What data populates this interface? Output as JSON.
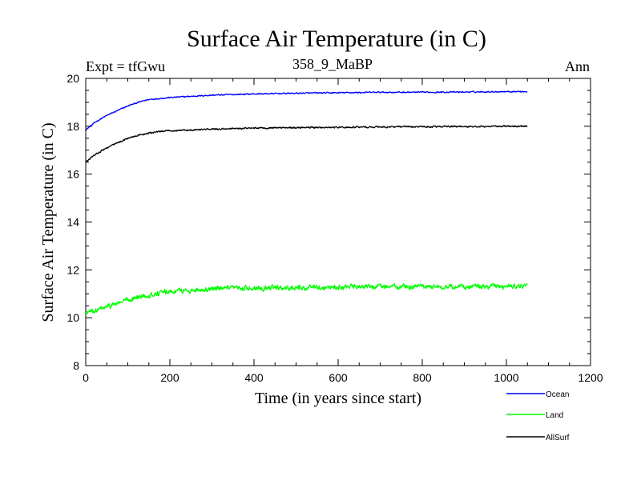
{
  "chart_data": {
    "type": "line",
    "title": "Surface Air Temperature (in C)",
    "subtitle_left": "Expt = tfGwu",
    "subtitle_center": "358_9_MaBP",
    "subtitle_right": "Ann",
    "xlabel": "Time (in years since start)",
    "ylabel": "Surface Air Temperature (in C)",
    "xlim": [
      0,
      1200
    ],
    "ylim": [
      8,
      20
    ],
    "xticks": [
      0,
      200,
      400,
      600,
      800,
      1000,
      1200
    ],
    "yticks": [
      8,
      10,
      12,
      14,
      16,
      18,
      20
    ],
    "grid": false,
    "legend_position": "bottom-right",
    "series": [
      {
        "name": "Ocean",
        "color": "#0000ff",
        "noise": 0.04,
        "x": [
          0,
          25,
          50,
          75,
          100,
          125,
          150,
          200,
          250,
          300,
          400,
          500,
          600,
          700,
          800,
          900,
          1000,
          1050
        ],
        "values": [
          17.85,
          18.2,
          18.45,
          18.65,
          18.85,
          19.0,
          19.12,
          19.2,
          19.25,
          19.3,
          19.35,
          19.38,
          19.4,
          19.42,
          19.42,
          19.43,
          19.45,
          19.45
        ]
      },
      {
        "name": "Land",
        "color": "#00ff00",
        "noise": 0.16,
        "x": [
          0,
          25,
          50,
          75,
          100,
          125,
          150,
          200,
          250,
          300,
          400,
          500,
          600,
          700,
          800,
          900,
          1000,
          1050
        ],
        "values": [
          10.2,
          10.3,
          10.45,
          10.6,
          10.75,
          10.85,
          10.95,
          11.1,
          11.15,
          11.2,
          11.25,
          11.25,
          11.28,
          11.3,
          11.3,
          11.3,
          11.3,
          11.3
        ]
      },
      {
        "name": "AllSurf",
        "color": "#000000",
        "noise": 0.05,
        "x": [
          0,
          25,
          50,
          75,
          100,
          125,
          150,
          200,
          250,
          300,
          400,
          500,
          600,
          700,
          800,
          900,
          1000,
          1050
        ],
        "values": [
          16.5,
          16.85,
          17.1,
          17.3,
          17.5,
          17.62,
          17.72,
          17.82,
          17.85,
          17.88,
          17.92,
          17.95,
          17.95,
          17.97,
          17.98,
          17.99,
          18.0,
          18.0
        ]
      }
    ]
  }
}
